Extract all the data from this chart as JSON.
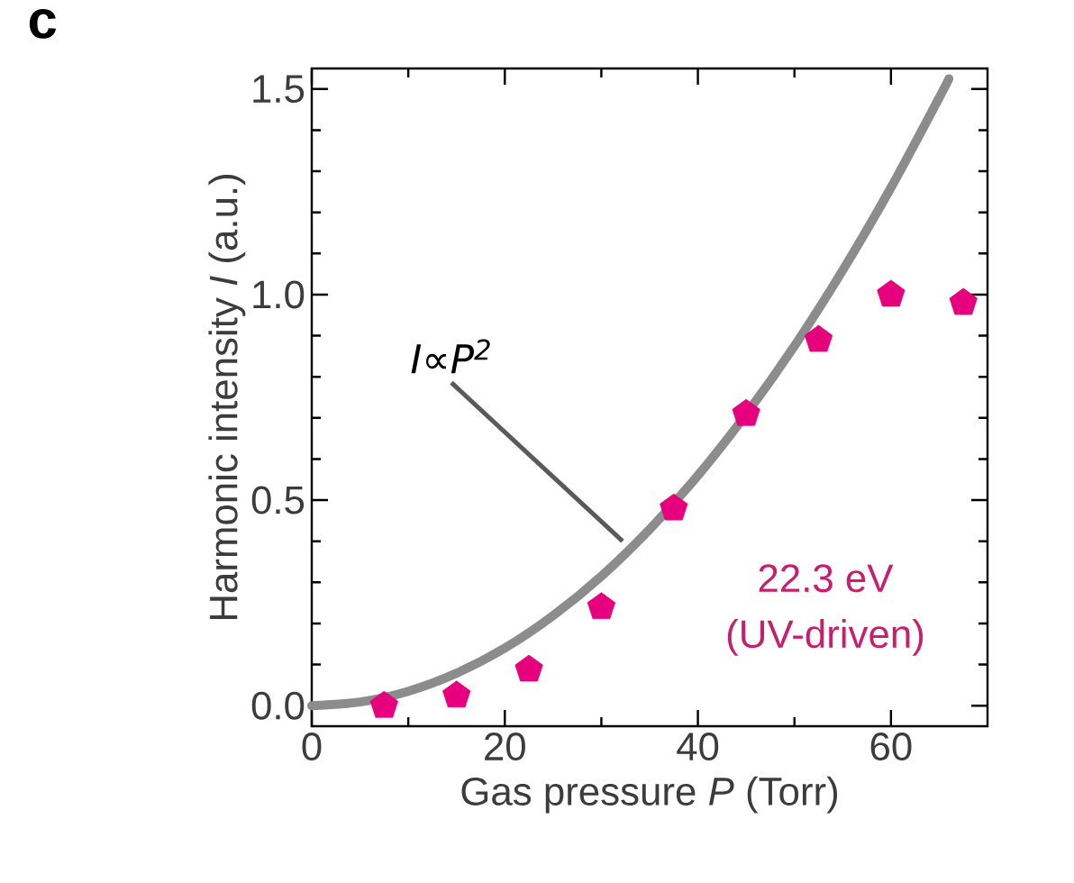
{
  "chart_data": {
    "type": "scatter",
    "xlabel": "Gas pressure *P* (Torr)",
    "ylabel": "Harmonic intensity *I* (a.u.)",
    "annotations": [
      "c",
      {
        "text": "*I*∝*P*$^{2}$",
        "x": 32.2,
        "y": 0.4
      },
      "22.3 eV",
      "(UV-driven)"
    ],
    "xlim": [
      0,
      70
    ],
    "ylim": [
      -0.05,
      1.55
    ],
    "xticks": [
      0,
      20,
      40,
      60
    ],
    "yticks": [
      {
        "value": 0,
        "label": "0.0"
      },
      {
        "value": 0.5,
        "label": "0.5"
      },
      {
        "value": 1,
        "label": "1.0"
      },
      {
        "value": 1.5,
        "label": "1.5"
      }
    ],
    "grid": false,
    "series": [
      {
        "type": "line",
        "color": "#8c8c8c",
        "marker": "none",
        "line_style": "solid",
        "x": [
          0,
          5,
          10,
          15,
          20,
          25,
          30,
          35,
          40,
          45,
          50,
          55,
          60,
          65,
          66
        ],
        "values": [
          0,
          0.009,
          0.035,
          0.079,
          0.14,
          0.219,
          0.315,
          0.429,
          0.56,
          0.709,
          0.875,
          1.059,
          1.26,
          1.479,
          1.525
        ]
      },
      {
        "color": "#e6007e",
        "x": [
          7.5,
          15,
          22.5,
          30,
          37.5,
          45,
          52.5,
          60,
          67.5
        ],
        "values": [
          0.0,
          0.025,
          0.088,
          0.24,
          0.48,
          0.71,
          0.89,
          1.0,
          0.98
        ]
      }
    ]
  }
}
